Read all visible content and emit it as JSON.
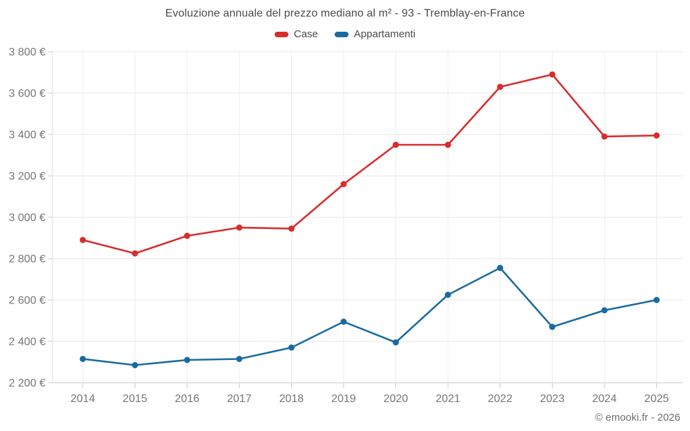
{
  "chart_data": {
    "type": "line",
    "title": "Evoluzione annuale del prezzo mediano al m² - 93 - Tremblay-en-France",
    "x": [
      2014,
      2015,
      2016,
      2017,
      2018,
      2019,
      2020,
      2021,
      2022,
      2023,
      2024,
      2025
    ],
    "series": [
      {
        "name": "Case",
        "color": "#d92c2c",
        "values": [
          2890,
          2825,
          2910,
          2950,
          2945,
          3160,
          3350,
          3350,
          3630,
          3690,
          3390,
          3395
        ]
      },
      {
        "name": "Appartamenti",
        "color": "#1a6b9f",
        "values": [
          2315,
          2285,
          2310,
          2315,
          2370,
          2495,
          2395,
          2625,
          2755,
          2470,
          2550,
          2600
        ]
      }
    ],
    "ylim": [
      2200,
      3800
    ],
    "yticks": [
      2200,
      2400,
      2600,
      2800,
      3000,
      3200,
      3400,
      3600,
      3800
    ],
    "ytick_suffix": "€",
    "xlabel": "",
    "ylabel": "",
    "grid": true,
    "legend_position": "top"
  },
  "footer": {
    "watermark": "© emooki.fr - 2026"
  }
}
